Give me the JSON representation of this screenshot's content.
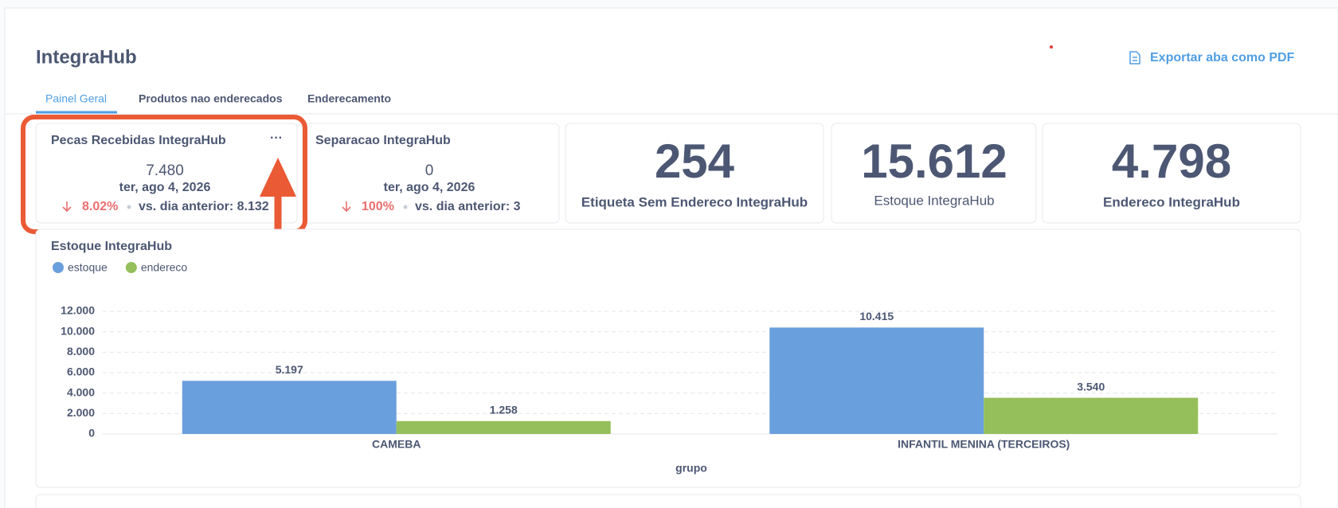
{
  "header": {
    "title": "IntegraHub",
    "export": "Exportar aba como PDF"
  },
  "tabs": [
    "Painel Geral",
    "Produtos nao enderecados",
    "Enderecamento"
  ],
  "cards": [
    {
      "title": "Pecas Recebidas IntegraHub",
      "value": "7.480",
      "date": "ter, ago 4, 2026",
      "change": "8.02%",
      "comparison": "vs. dia anterior: 8.132"
    },
    {
      "title": "Separacao IntegraHub",
      "value": "0",
      "date": "ter, ago 4, 2026",
      "change": "100%",
      "comparison": "vs. dia anterior: 3"
    },
    {
      "value": "254",
      "label": "Etiqueta Sem Endereco IntegraHub"
    },
    {
      "value": "15.612",
      "label": "Estoque IntegraHub"
    },
    {
      "value": "4.798",
      "label": "Endereco IntegraHub"
    }
  ],
  "chart_data": {
    "type": "bar",
    "title": "Estoque IntegraHub",
    "categories": [
      "CAMEBA",
      "INFANTIL MENINA (TERCEIROS)"
    ],
    "series": [
      {
        "name": "estoque",
        "color": "#6a9fdd",
        "values": [
          5197,
          10415
        ],
        "value_labels": [
          "5.197",
          "10.415"
        ]
      },
      {
        "name": "endereco",
        "color": "#95bf5b",
        "values": [
          1258,
          3540
        ],
        "value_labels": [
          "1.258",
          "3.540"
        ]
      }
    ],
    "xlabel": "grupo",
    "ylim": [
      0,
      12000
    ],
    "yticks": [
      0,
      {
        "value": 2000,
        "label": "2.000"
      },
      {
        "value": 4000,
        "label": "4.000"
      },
      {
        "value": 6000,
        "label": "6.000"
      },
      {
        "value": 8000,
        "label": "8.000"
      },
      {
        "value": 10000,
        "label": "10.000"
      },
      {
        "value": 12000,
        "label": "12.000"
      }
    ],
    "grid": true,
    "legend": "top-left"
  }
}
